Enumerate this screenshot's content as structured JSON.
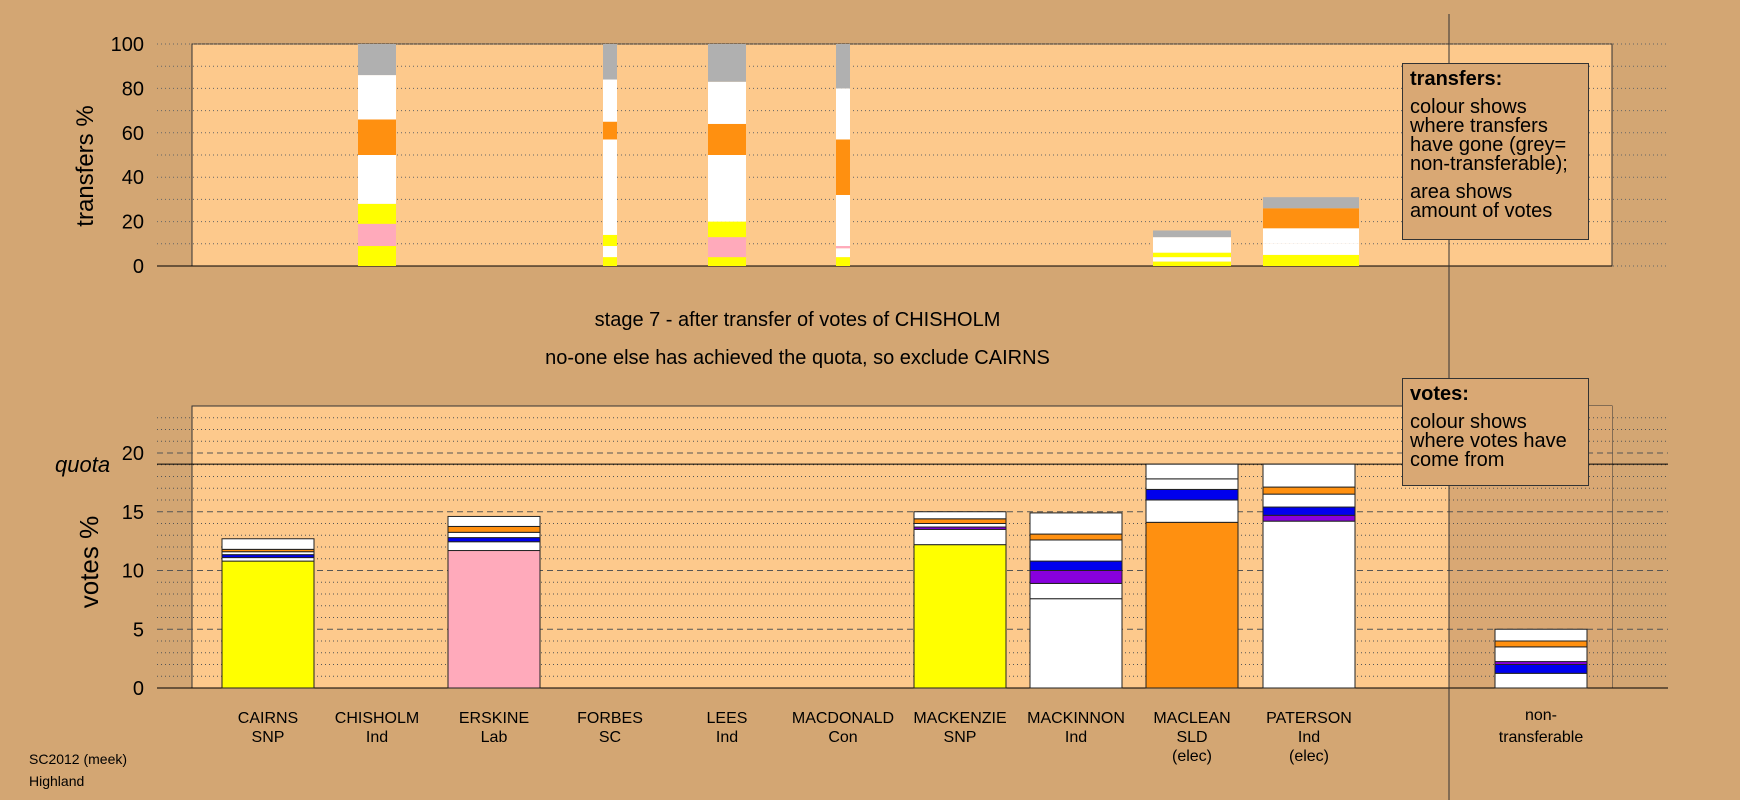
{
  "chart_data": [
    {
      "type": "bar",
      "name": "transfers",
      "ylabel": "transfers %",
      "ylim": [
        0,
        100
      ],
      "yticks": [
        0,
        20,
        40,
        60,
        80,
        100
      ],
      "grid": "dotted every 10",
      "categories": [
        "CAIRNS",
        "CHISHOLM",
        "ERSKINE",
        "FORBES",
        "LEES",
        "MACDONALD",
        "MACKENZIE",
        "MACKINNON",
        "MACLEAN",
        "PATERSON"
      ],
      "bars": [
        {
          "category": "CHISHOLM",
          "width": "wide",
          "segments": [
            {
              "color": "#ffff00",
              "value": 9
            },
            {
              "color": "#ffaabb",
              "value": 10
            },
            {
              "color": "#ffff00",
              "value": 9
            },
            {
              "color": "#ffffff",
              "value": 22
            },
            {
              "color": "#ff9010",
              "value": 16
            },
            {
              "color": "#ffffff",
              "value": 20
            },
            {
              "color": "#b0b0b0",
              "value": 14
            }
          ]
        },
        {
          "category": "FORBES",
          "width": "narrow",
          "segments": [
            {
              "color": "#ffff00",
              "value": 4
            },
            {
              "color": "#ffffff",
              "value": 5
            },
            {
              "color": "#ffff00",
              "value": 5
            },
            {
              "color": "#ffffff",
              "value": 43
            },
            {
              "color": "#ff9010",
              "value": 8
            },
            {
              "color": "#ffffff",
              "value": 19
            },
            {
              "color": "#b0b0b0",
              "value": 16
            }
          ]
        },
        {
          "category": "LEES",
          "width": "wide",
          "segments": [
            {
              "color": "#ffff00",
              "value": 4
            },
            {
              "color": "#ffaabb",
              "value": 9
            },
            {
              "color": "#ffff00",
              "value": 7
            },
            {
              "color": "#ffffff",
              "value": 30
            },
            {
              "color": "#ff9010",
              "value": 14
            },
            {
              "color": "#ffffff",
              "value": 19
            },
            {
              "color": "#b0b0b0",
              "value": 17
            }
          ]
        },
        {
          "category": "MACDONALD",
          "width": "narrow",
          "segments": [
            {
              "color": "#ffff00",
              "value": 4
            },
            {
              "color": "#ffffff",
              "value": 4
            },
            {
              "color": "#ffaabb",
              "value": 1
            },
            {
              "color": "#ffffff",
              "value": 23
            },
            {
              "color": "#ff9010",
              "value": 25
            },
            {
              "color": "#ffffff",
              "value": 23
            },
            {
              "color": "#b0b0b0",
              "value": 20
            }
          ]
        },
        {
          "category": "MACLEAN",
          "width": "wide",
          "segments": [
            {
              "color": "#ffff00",
              "value": 2
            },
            {
              "color": "#ffffff",
              "value": 2
            },
            {
              "color": "#ffff00",
              "value": 2
            },
            {
              "color": "#ffffff",
              "value": 7
            },
            {
              "color": "#b0b0b0",
              "value": 3
            }
          ]
        },
        {
          "category": "PATERSON",
          "width": "wide",
          "segments": [
            {
              "color": "#ffff00",
              "value": 5
            },
            {
              "color": "#ffffff",
              "value": 5
            },
            {
              "color": "#ffffff",
              "value": 7
            },
            {
              "color": "#ff9010",
              "value": 9
            },
            {
              "color": "#b0b0b0",
              "value": 5
            }
          ]
        }
      ]
    },
    {
      "type": "bar",
      "name": "votes",
      "ylabel": "votes %",
      "ylim": [
        0,
        24
      ],
      "yticks": [
        0,
        5,
        10,
        15,
        20
      ],
      "quota": 19.05,
      "grid": "dotted every 1, dashed every 5",
      "categories": [
        "CAIRNS",
        "CHISHOLM",
        "ERSKINE",
        "FORBES",
        "LEES",
        "MACDONALD",
        "MACKENZIE",
        "MACKINNON",
        "MACLEAN",
        "PATERSON",
        "non-transferable"
      ],
      "bars": [
        {
          "category": "CAIRNS",
          "segments": [
            {
              "color": "#ffff00",
              "value": 10.8
            },
            {
              "color": "#ffffff",
              "value": 0.3
            },
            {
              "color": "#0000ee",
              "value": 0.25
            },
            {
              "color": "#ffffff",
              "value": 0.25
            },
            {
              "color": "#ff9010",
              "value": 0.2
            },
            {
              "color": "#ffffff",
              "value": 0.9
            }
          ]
        },
        {
          "category": "CHISHOLM",
          "segments": []
        },
        {
          "category": "ERSKINE",
          "segments": [
            {
              "color": "#ffaabb",
              "value": 11.7
            },
            {
              "color": "#ffffff",
              "value": 0.75
            },
            {
              "color": "#0000ee",
              "value": 0.35
            },
            {
              "color": "#ffffff",
              "value": 0.45
            },
            {
              "color": "#ff9010",
              "value": 0.5
            },
            {
              "color": "#ffffff",
              "value": 0.85
            }
          ]
        },
        {
          "category": "FORBES",
          "segments": []
        },
        {
          "category": "LEES",
          "segments": []
        },
        {
          "category": "MACDONALD",
          "segments": []
        },
        {
          "category": "MACKENZIE",
          "segments": [
            {
              "color": "#ffff00",
              "value": 12.2
            },
            {
              "color": "#ffffff",
              "value": 1.3
            },
            {
              "color": "#8800dd",
              "value": 0.2
            },
            {
              "color": "#ffffff",
              "value": 0.3
            },
            {
              "color": "#ff9010",
              "value": 0.4
            },
            {
              "color": "#ffffff",
              "value": 0.6
            }
          ]
        },
        {
          "category": "MACKINNON",
          "segments": [
            {
              "color": "#ffffff",
              "value": 7.6
            },
            {
              "color": "#ffffff",
              "value": 1.3
            },
            {
              "color": "#8800dd",
              "value": 1.1
            },
            {
              "color": "#0000ee",
              "value": 0.8
            },
            {
              "color": "#ffffff",
              "value": 1.8
            },
            {
              "color": "#ff9010",
              "value": 0.5
            },
            {
              "color": "#ffffff",
              "value": 1.8
            }
          ]
        },
        {
          "category": "MACLEAN",
          "segments": [
            {
              "color": "#ff9010",
              "value": 14.1
            },
            {
              "color": "#ffffff",
              "value": 1.9
            },
            {
              "color": "#0000ee",
              "value": 0.9
            },
            {
              "color": "#ffffff",
              "value": 0.9
            },
            {
              "color": "#ffffff",
              "value": 1.25
            }
          ]
        },
        {
          "category": "PATERSON",
          "segments": [
            {
              "color": "#ffffff",
              "value": 14.2
            },
            {
              "color": "#8800dd",
              "value": 0.5
            },
            {
              "color": "#0000ee",
              "value": 0.7
            },
            {
              "color": "#ffffff",
              "value": 1.1
            },
            {
              "color": "#ff9010",
              "value": 0.6
            },
            {
              "color": "#ffffff",
              "value": 1.95
            }
          ]
        },
        {
          "category": "non-transferable",
          "segments": [
            {
              "color": "#ffffff",
              "value": 1.25
            },
            {
              "color": "#0000ee",
              "value": 0.75
            },
            {
              "color": "#8800dd",
              "value": 0.25
            },
            {
              "color": "#ffffff",
              "value": 1.25
            },
            {
              "color": "#ff9010",
              "value": 0.5
            },
            {
              "color": "#ffffff",
              "value": 1.0
            }
          ]
        }
      ]
    }
  ],
  "labels": {
    "transfers_axis": "transfers %",
    "votes_axis": "votes %",
    "quota": "quota",
    "stage_line": "stage 7 - after transfer of votes of CHISHOLM",
    "action_line": "no-one else has achieved the quota, so exclude CAIRNS"
  },
  "candidates": [
    {
      "name": "CAIRNS",
      "party": "SNP",
      "status": ""
    },
    {
      "name": "CHISHOLM",
      "party": "Ind",
      "status": ""
    },
    {
      "name": "ERSKINE",
      "party": "Lab",
      "status": ""
    },
    {
      "name": "FORBES",
      "party": "SC",
      "status": ""
    },
    {
      "name": "LEES",
      "party": "Ind",
      "status": ""
    },
    {
      "name": "MACDONALD",
      "party": "Con",
      "status": ""
    },
    {
      "name": "MACKENZIE",
      "party": "SNP",
      "status": ""
    },
    {
      "name": "MACKINNON",
      "party": "Ind",
      "status": ""
    },
    {
      "name": "MACLEAN",
      "party": "SLD",
      "status": "(elec)"
    },
    {
      "name": "PATERSON",
      "party": "Ind",
      "status": "(elec)"
    }
  ],
  "nontransferable": {
    "line1": "non-",
    "line2": "transferable"
  },
  "legend_transfers": {
    "title": "transfers:",
    "line1": "colour shows where transfers have gone (grey= non-transferable);",
    "line2": "area shows amount of votes"
  },
  "legend_votes": {
    "title": "votes:",
    "line1": "colour shows where votes have come from"
  },
  "footer": {
    "line1": "SC2012 (meek)",
    "line2": "Highland"
  }
}
